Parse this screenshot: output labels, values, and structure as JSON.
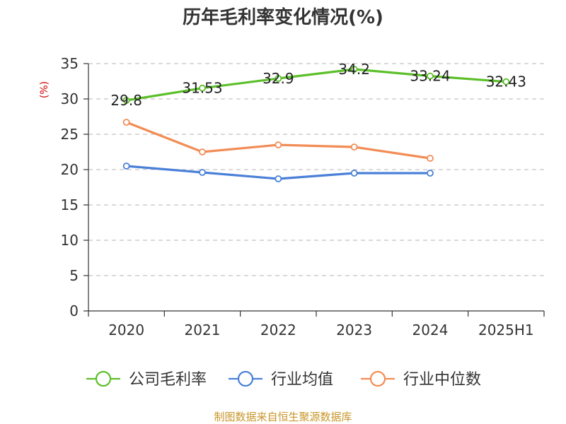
{
  "chart_data": {
    "type": "line",
    "title": "历年毛利率变化情况(%)",
    "ylabel": "(%)",
    "xlabel": "",
    "categories": [
      "2020",
      "2021",
      "2022",
      "2023",
      "2024",
      "2025H1"
    ],
    "ylim": [
      0,
      35
    ],
    "yticks": [
      0,
      5,
      10,
      15,
      20,
      25,
      30,
      35
    ],
    "grid": "horizontal-dashed",
    "legend_position": "bottom",
    "series": [
      {
        "name": "公司毛利率",
        "color": "#5cbf2a",
        "values": [
          29.8,
          31.53,
          32.9,
          34.2,
          33.24,
          32.43
        ],
        "labels": [
          "29.8",
          "31.53",
          "32.9",
          "34.2",
          "33.24",
          "32.43"
        ]
      },
      {
        "name": "行业均值",
        "color": "#4a80d8",
        "values": [
          20.5,
          19.6,
          18.7,
          19.5,
          19.5,
          null
        ],
        "labels": null
      },
      {
        "name": "行业中位数",
        "color": "#f28c55",
        "values": [
          26.7,
          22.5,
          23.5,
          23.2,
          21.6,
          null
        ],
        "labels": null
      }
    ]
  },
  "footer": {
    "source": "制图数据来自恒生聚源数据库"
  }
}
